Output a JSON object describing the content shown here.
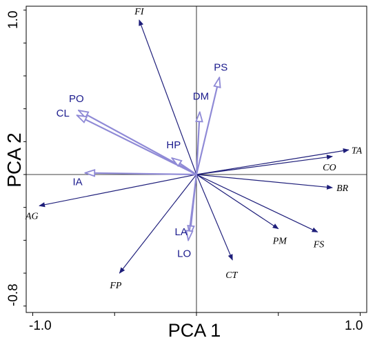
{
  "chart_data": {
    "type": "scatter",
    "subtype": "pca-biplot",
    "xlabel": "PCA 1",
    "ylabel": "PCA 2",
    "xlim": [
      -1.0,
      1.0
    ],
    "ylim": [
      -0.8,
      1.0
    ],
    "x_tick_labels": [
      "-1.0",
      "1.0"
    ],
    "y_tick_labels": [
      "1.0",
      "-0.8"
    ],
    "grid": false,
    "colors": {
      "species": "#1e1e7a",
      "environment": "#8f8ad6",
      "label": "#1a1a8c"
    },
    "series": [
      {
        "name": "species",
        "arrow_style": "solid",
        "points": [
          {
            "label": "FI",
            "x": -0.35,
            "y": 0.94
          },
          {
            "label": "TA",
            "x": 0.93,
            "y": 0.15
          },
          {
            "label": "CO",
            "x": 0.83,
            "y": 0.11
          },
          {
            "label": "BR",
            "x": 0.83,
            "y": -0.08
          },
          {
            "label": "AG",
            "x": -0.96,
            "y": -0.19
          },
          {
            "label": "PM",
            "x": 0.5,
            "y": -0.33
          },
          {
            "label": "FS",
            "x": 0.74,
            "y": -0.35
          },
          {
            "label": "CT",
            "x": 0.22,
            "y": -0.52
          },
          {
            "label": "FP",
            "x": -0.47,
            "y": -0.6
          }
        ]
      },
      {
        "name": "environment",
        "arrow_style": "open",
        "points": [
          {
            "label": "PS",
            "x": 0.14,
            "y": 0.59
          },
          {
            "label": "DM",
            "x": 0.02,
            "y": 0.38
          },
          {
            "label": "PO",
            "x": -0.72,
            "y": 0.39
          },
          {
            "label": "CL",
            "x": -0.73,
            "y": 0.36
          },
          {
            "label": "HP",
            "x": -0.15,
            "y": 0.1
          },
          {
            "label": "IA",
            "x": -0.68,
            "y": 0.01
          },
          {
            "label": "LA",
            "x": -0.04,
            "y": -0.37
          },
          {
            "label": "LO",
            "x": -0.05,
            "y": -0.4
          }
        ]
      }
    ]
  }
}
